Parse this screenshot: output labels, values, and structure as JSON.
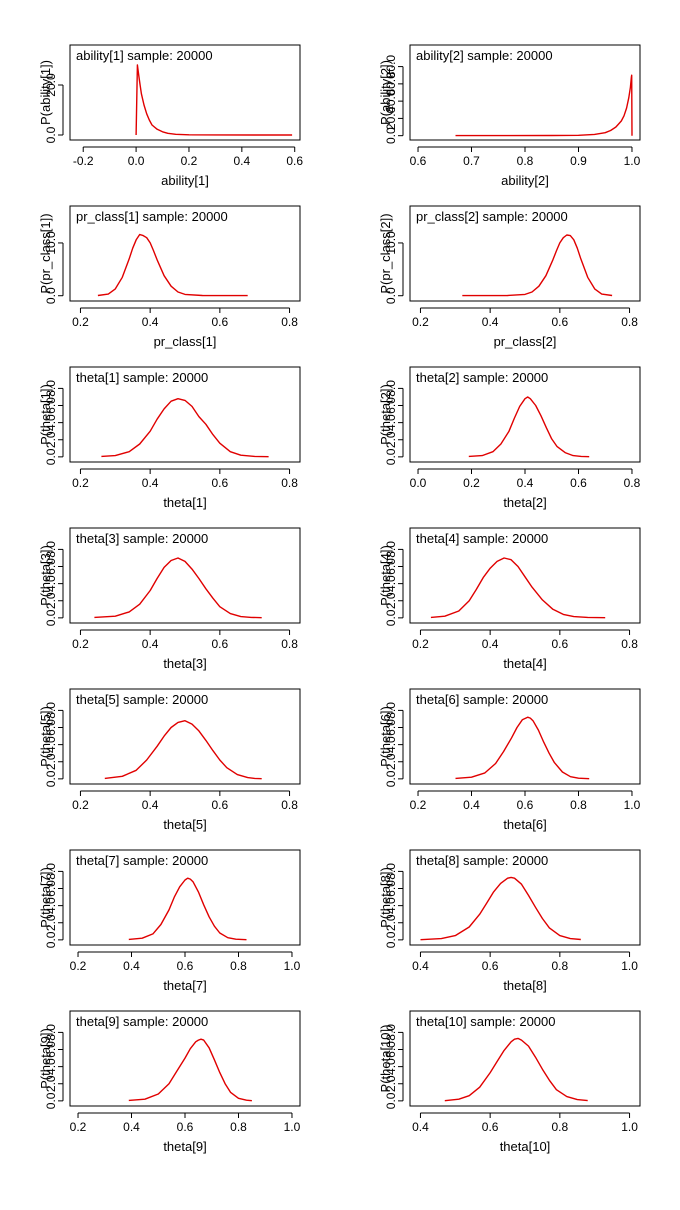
{
  "chart_data": [
    {
      "type": "line",
      "title": "ability[1] sample: 20000",
      "xlabel": "ability[1]",
      "ylabel": "P(ability[1])",
      "xlim": [
        -0.25,
        0.62
      ],
      "ylim": [
        -2,
        36
      ],
      "xticks": [
        -0.2,
        0.0,
        0.2,
        0.4,
        0.6
      ],
      "xtick_labels": [
        "-0.2",
        "0.0",
        "0.2",
        "0.4",
        "0.6"
      ],
      "yticks": [
        0,
        20
      ],
      "ytick_labels": [
        "0.0",
        "20.0"
      ],
      "color": "#e00000",
      "series": [
        {
          "x": [
            0.0,
            0.005,
            0.01,
            0.015,
            0.02,
            0.03,
            0.04,
            0.05,
            0.06,
            0.08,
            0.1,
            0.12,
            0.15,
            0.2,
            0.3,
            0.45,
            0.59
          ],
          "y": [
            0,
            28,
            24,
            20,
            16.5,
            12,
            8.5,
            6,
            4,
            2.3,
            1.3,
            0.7,
            0.3,
            0.1,
            0.03,
            0.02,
            0.02
          ]
        }
      ]
    },
    {
      "type": "line",
      "title": "ability[2] sample: 20000",
      "xlabel": "ability[2]",
      "ylabel": "P(ability[2])",
      "xlim": [
        0.585,
        1.015
      ],
      "ylim": [
        -5,
        105
      ],
      "xticks": [
        0.6,
        0.7,
        0.8,
        0.9,
        1.0
      ],
      "xtick_labels": [
        "0.6",
        "0.7",
        "0.8",
        "0.9",
        "1.0"
      ],
      "yticks": [
        0,
        20,
        40,
        60,
        80
      ],
      "ytick_labels": [
        "0.0",
        "20.0",
        "40.0",
        "60.0",
        "80.0"
      ],
      "color": "#e00000",
      "series": [
        {
          "x": [
            0.67,
            0.75,
            0.85,
            0.9,
            0.93,
            0.95,
            0.96,
            0.97,
            0.98,
            0.985,
            0.99,
            0.994,
            0.997,
            0.999,
            0.9995,
            1.0
          ],
          "y": [
            0.1,
            0.1,
            0.2,
            0.5,
            1.5,
            3.5,
            6,
            10,
            17,
            23,
            32,
            44,
            56,
            68,
            70,
            0
          ]
        }
      ]
    },
    {
      "type": "line",
      "title": "pr_class[1] sample: 20000",
      "xlabel": "pr_class[1]",
      "ylabel": "P(pr_class[1])",
      "xlim": [
        0.17,
        0.83
      ],
      "ylim": [
        -1,
        17
      ],
      "xticks": [
        0.2,
        0.4,
        0.6,
        0.8
      ],
      "xtick_labels": [
        "0.2",
        "0.4",
        "0.6",
        "0.8"
      ],
      "yticks": [
        0,
        10
      ],
      "ytick_labels": [
        "0.0",
        "10.0"
      ],
      "color": "#e00000",
      "series": [
        {
          "x": [
            0.25,
            0.28,
            0.3,
            0.32,
            0.34,
            0.35,
            0.36,
            0.37,
            0.38,
            0.39,
            0.4,
            0.41,
            0.42,
            0.44,
            0.46,
            0.48,
            0.5,
            0.55,
            0.68
          ],
          "y": [
            0.05,
            0.3,
            1.3,
            3.5,
            7,
            9,
            10.6,
            11.6,
            11.4,
            11,
            10,
            8.5,
            6.8,
            3.8,
            1.8,
            0.7,
            0.25,
            0.05,
            0.02
          ]
        }
      ]
    },
    {
      "type": "line",
      "title": "pr_class[2] sample: 20000",
      "xlabel": "pr_class[2]",
      "ylabel": "P(pr_class[2])",
      "xlim": [
        0.17,
        0.83
      ],
      "ylim": [
        -1,
        17
      ],
      "xticks": [
        0.2,
        0.4,
        0.6,
        0.8
      ],
      "xtick_labels": [
        "0.2",
        "0.4",
        "0.6",
        "0.8"
      ],
      "yticks": [
        0,
        10
      ],
      "ytick_labels": [
        "0.0",
        "10.0"
      ],
      "color": "#e00000",
      "series": [
        {
          "x": [
            0.32,
            0.45,
            0.5,
            0.52,
            0.54,
            0.56,
            0.58,
            0.59,
            0.6,
            0.61,
            0.62,
            0.63,
            0.64,
            0.65,
            0.66,
            0.68,
            0.7,
            0.72,
            0.75
          ],
          "y": [
            0.02,
            0.05,
            0.25,
            0.7,
            1.8,
            3.8,
            6.8,
            8.5,
            10,
            11,
            11.5,
            11.4,
            10.6,
            9,
            7,
            3.5,
            1.3,
            0.3,
            0.05
          ]
        }
      ]
    },
    {
      "type": "line",
      "title": "theta[1] sample: 20000",
      "xlabel": "theta[1]",
      "ylabel": "P(theta[1])",
      "xlim": [
        0.17,
        0.83
      ],
      "ylim": [
        -0.6,
        10.5
      ],
      "xticks": [
        0.2,
        0.4,
        0.6,
        0.8
      ],
      "xtick_labels": [
        "0.2",
        "0.4",
        "0.6",
        "0.8"
      ],
      "yticks": [
        0,
        2,
        4,
        6,
        8
      ],
      "ytick_labels": [
        "0.0",
        "2.0",
        "4.0",
        "6.0",
        "8.0"
      ],
      "color": "#e00000",
      "series": [
        {
          "x": [
            0.26,
            0.3,
            0.34,
            0.37,
            0.4,
            0.42,
            0.44,
            0.46,
            0.48,
            0.5,
            0.52,
            0.54,
            0.56,
            0.58,
            0.6,
            0.63,
            0.66,
            0.7,
            0.74
          ],
          "y": [
            0.05,
            0.15,
            0.6,
            1.5,
            3,
            4.4,
            5.6,
            6.5,
            6.8,
            6.6,
            5.9,
            4.7,
            3.8,
            2.6,
            1.6,
            0.6,
            0.2,
            0.05,
            0.02
          ]
        }
      ]
    },
    {
      "type": "line",
      "title": "theta[2] sample: 20000",
      "xlabel": "theta[2]",
      "ylabel": "P(theta[2])",
      "xlim": [
        -0.03,
        0.83
      ],
      "ylim": [
        -0.6,
        10.5
      ],
      "xticks": [
        0.0,
        0.2,
        0.4,
        0.6,
        0.8
      ],
      "xtick_labels": [
        "0.0",
        "0.2",
        "0.4",
        "0.6",
        "0.8"
      ],
      "yticks": [
        0,
        2,
        4,
        6,
        8
      ],
      "ytick_labels": [
        "0.0",
        "2.0",
        "4.0",
        "6.0",
        "8.0"
      ],
      "color": "#e00000",
      "series": [
        {
          "x": [
            0.19,
            0.24,
            0.28,
            0.31,
            0.34,
            0.36,
            0.38,
            0.4,
            0.41,
            0.42,
            0.44,
            0.46,
            0.48,
            0.5,
            0.52,
            0.55,
            0.58,
            0.61,
            0.64
          ],
          "y": [
            0.05,
            0.15,
            0.6,
            1.5,
            3,
            4.5,
            5.9,
            6.8,
            7,
            6.8,
            6,
            4.8,
            3.4,
            2.1,
            1.2,
            0.5,
            0.15,
            0.05,
            0.02
          ]
        }
      ]
    },
    {
      "type": "line",
      "title": "theta[3] sample: 20000",
      "xlabel": "theta[3]",
      "ylabel": "P(theta[3])",
      "xlim": [
        0.17,
        0.83
      ],
      "ylim": [
        -0.6,
        10.5
      ],
      "xticks": [
        0.2,
        0.4,
        0.6,
        0.8
      ],
      "xtick_labels": [
        "0.2",
        "0.4",
        "0.6",
        "0.8"
      ],
      "yticks": [
        0,
        2,
        4,
        6,
        8
      ],
      "ytick_labels": [
        "0.0",
        "2.0",
        "4.0",
        "6.0",
        "8.0"
      ],
      "color": "#e00000",
      "series": [
        {
          "x": [
            0.24,
            0.3,
            0.34,
            0.37,
            0.4,
            0.42,
            0.44,
            0.46,
            0.48,
            0.5,
            0.52,
            0.54,
            0.56,
            0.58,
            0.6,
            0.63,
            0.66,
            0.69,
            0.72
          ],
          "y": [
            0.05,
            0.2,
            0.7,
            1.6,
            3.2,
            4.6,
            5.9,
            6.7,
            7,
            6.6,
            5.7,
            4.6,
            3.4,
            2.3,
            1.3,
            0.5,
            0.15,
            0.05,
            0.02
          ]
        }
      ]
    },
    {
      "type": "line",
      "title": "theta[4] sample: 20000",
      "xlabel": "theta[4]",
      "ylabel": "P(theta[4])",
      "xlim": [
        0.17,
        0.83
      ],
      "ylim": [
        -0.6,
        10.5
      ],
      "xticks": [
        0.2,
        0.4,
        0.6,
        0.8
      ],
      "xtick_labels": [
        "0.2",
        "0.4",
        "0.6",
        "0.8"
      ],
      "yticks": [
        0,
        2,
        4,
        6,
        8
      ],
      "ytick_labels": [
        "0.0",
        "2.0",
        "4.0",
        "6.0",
        "8.0"
      ],
      "color": "#e00000",
      "series": [
        {
          "x": [
            0.23,
            0.27,
            0.31,
            0.34,
            0.36,
            0.38,
            0.4,
            0.42,
            0.44,
            0.46,
            0.48,
            0.5,
            0.52,
            0.55,
            0.58,
            0.61,
            0.64,
            0.68,
            0.73
          ],
          "y": [
            0.05,
            0.2,
            0.8,
            2,
            3.3,
            4.7,
            5.8,
            6.6,
            7,
            6.8,
            6,
            4.8,
            3.6,
            2.1,
            1,
            0.4,
            0.15,
            0.05,
            0.02
          ]
        }
      ]
    },
    {
      "type": "line",
      "title": "theta[5] sample: 20000",
      "xlabel": "theta[5]",
      "ylabel": "P(theta[5])",
      "xlim": [
        0.17,
        0.83
      ],
      "ylim": [
        -0.6,
        10.5
      ],
      "xticks": [
        0.2,
        0.4,
        0.6,
        0.8
      ],
      "xtick_labels": [
        "0.2",
        "0.4",
        "0.6",
        "0.8"
      ],
      "yticks": [
        0,
        2,
        4,
        6,
        8
      ],
      "ytick_labels": [
        "0.0",
        "2.0",
        "4.0",
        "6.0",
        "8.0"
      ],
      "color": "#e00000",
      "series": [
        {
          "x": [
            0.27,
            0.32,
            0.36,
            0.39,
            0.42,
            0.44,
            0.46,
            0.48,
            0.5,
            0.52,
            0.54,
            0.56,
            0.58,
            0.6,
            0.62,
            0.65,
            0.68,
            0.7,
            0.72
          ],
          "y": [
            0.05,
            0.3,
            1,
            2.2,
            3.8,
            5,
            6,
            6.6,
            6.8,
            6.4,
            5.6,
            4.5,
            3.3,
            2.2,
            1.3,
            0.5,
            0.15,
            0.05,
            0.02
          ]
        }
      ]
    },
    {
      "type": "line",
      "title": "theta[6] sample: 20000",
      "xlabel": "theta[6]",
      "ylabel": "P(theta[6])",
      "xlim": [
        0.17,
        1.03
      ],
      "ylim": [
        -0.6,
        10.5
      ],
      "xticks": [
        0.2,
        0.4,
        0.6,
        0.8,
        1.0
      ],
      "xtick_labels": [
        "0.2",
        "0.4",
        "0.6",
        "0.8",
        "1.0"
      ],
      "yticks": [
        0,
        2,
        4,
        6,
        8
      ],
      "ytick_labels": [
        "0.0",
        "2.0",
        "4.0",
        "6.0",
        "8.0"
      ],
      "color": "#e00000",
      "series": [
        {
          "x": [
            0.34,
            0.4,
            0.45,
            0.49,
            0.52,
            0.55,
            0.57,
            0.59,
            0.61,
            0.62,
            0.63,
            0.65,
            0.67,
            0.69,
            0.71,
            0.74,
            0.77,
            0.8,
            0.84
          ],
          "y": [
            0.05,
            0.2,
            0.7,
            1.8,
            3.2,
            4.8,
            6,
            6.9,
            7.2,
            7.1,
            6.8,
            5.7,
            4.3,
            3,
            1.9,
            0.8,
            0.25,
            0.08,
            0.02
          ]
        }
      ]
    },
    {
      "type": "line",
      "title": "theta[7] sample: 20000",
      "xlabel": "theta[7]",
      "ylabel": "P(theta[7])",
      "xlim": [
        0.17,
        1.03
      ],
      "ylim": [
        -0.6,
        10.5
      ],
      "xticks": [
        0.2,
        0.4,
        0.6,
        0.8,
        1.0
      ],
      "xtick_labels": [
        "0.2",
        "0.4",
        "0.6",
        "0.8",
        "1.0"
      ],
      "yticks": [
        0,
        2,
        4,
        6,
        8
      ],
      "ytick_labels": [
        "0.0",
        "2.0",
        "4.0",
        "6.0",
        "8.0"
      ],
      "color": "#e00000",
      "series": [
        {
          "x": [
            0.39,
            0.44,
            0.48,
            0.51,
            0.54,
            0.56,
            0.58,
            0.6,
            0.61,
            0.62,
            0.63,
            0.65,
            0.67,
            0.69,
            0.71,
            0.73,
            0.76,
            0.79,
            0.83
          ],
          "y": [
            0.05,
            0.2,
            0.7,
            1.8,
            3.5,
            5,
            6.2,
            7,
            7.2,
            7.1,
            6.8,
            5.6,
            4.1,
            2.7,
            1.6,
            0.8,
            0.25,
            0.08,
            0.02
          ]
        }
      ]
    },
    {
      "type": "line",
      "title": "theta[8] sample: 20000",
      "xlabel": "theta[8]",
      "ylabel": "P(theta[8])",
      "xlim": [
        0.37,
        1.03
      ],
      "ylim": [
        -0.6,
        10.5
      ],
      "xticks": [
        0.4,
        0.6,
        0.8,
        1.0
      ],
      "xtick_labels": [
        "0.4",
        "0.6",
        "0.8",
        "1.0"
      ],
      "yticks": [
        0,
        2,
        4,
        6,
        8
      ],
      "ytick_labels": [
        "0.0",
        "2.0",
        "4.0",
        "6.0",
        "8.0"
      ],
      "color": "#e00000",
      "series": [
        {
          "x": [
            0.4,
            0.46,
            0.5,
            0.54,
            0.57,
            0.59,
            0.61,
            0.63,
            0.65,
            0.66,
            0.67,
            0.69,
            0.71,
            0.73,
            0.75,
            0.77,
            0.8,
            0.83,
            0.86
          ],
          "y": [
            0.02,
            0.15,
            0.5,
            1.5,
            3,
            4.3,
            5.6,
            6.6,
            7.2,
            7.3,
            7.2,
            6.5,
            5.2,
            3.8,
            2.5,
            1.4,
            0.5,
            0.15,
            0.04
          ]
        }
      ]
    },
    {
      "type": "line",
      "title": "theta[9] sample: 20000",
      "xlabel": "theta[9]",
      "ylabel": "P(theta[9])",
      "xlim": [
        0.17,
        1.03
      ],
      "ylim": [
        -0.6,
        10.5
      ],
      "xticks": [
        0.2,
        0.4,
        0.6,
        0.8,
        1.0
      ],
      "xtick_labels": [
        "0.2",
        "0.4",
        "0.6",
        "0.8",
        "1.0"
      ],
      "yticks": [
        0,
        2,
        4,
        6,
        8
      ],
      "ytick_labels": [
        "0.0",
        "2.0",
        "4.0",
        "6.0",
        "8.0"
      ],
      "color": "#e00000",
      "series": [
        {
          "x": [
            0.39,
            0.45,
            0.5,
            0.54,
            0.57,
            0.6,
            0.62,
            0.64,
            0.65,
            0.66,
            0.67,
            0.69,
            0.71,
            0.73,
            0.75,
            0.77,
            0.8,
            0.83,
            0.85
          ],
          "y": [
            0.05,
            0.2,
            0.8,
            2,
            3.5,
            5,
            6.1,
            6.9,
            7.1,
            7.2,
            7.1,
            6.2,
            4.8,
            3.3,
            2,
            1,
            0.3,
            0.08,
            0.02
          ]
        }
      ]
    },
    {
      "type": "line",
      "title": "theta[10] sample: 20000",
      "xlabel": "theta[10]",
      "ylabel": "P(theta[10])",
      "xlim": [
        0.37,
        1.03
      ],
      "ylim": [
        -0.6,
        10.5
      ],
      "xticks": [
        0.4,
        0.6,
        0.8,
        1.0
      ],
      "xtick_labels": [
        "0.4",
        "0.6",
        "0.8",
        "1.0"
      ],
      "yticks": [
        0,
        2,
        4,
        6,
        8
      ],
      "ytick_labels": [
        "0.0",
        "2.0",
        "4.0",
        "6.0",
        "8.0"
      ],
      "color": "#e00000",
      "series": [
        {
          "x": [
            0.47,
            0.51,
            0.54,
            0.57,
            0.6,
            0.62,
            0.64,
            0.66,
            0.67,
            0.68,
            0.69,
            0.71,
            0.73,
            0.75,
            0.77,
            0.79,
            0.82,
            0.85,
            0.88
          ],
          "y": [
            0.02,
            0.2,
            0.6,
            1.6,
            3.3,
            4.6,
            5.9,
            6.9,
            7.2,
            7.3,
            7.1,
            6.4,
            5.1,
            3.7,
            2.4,
            1.3,
            0.5,
            0.15,
            0.03
          ]
        }
      ]
    }
  ]
}
